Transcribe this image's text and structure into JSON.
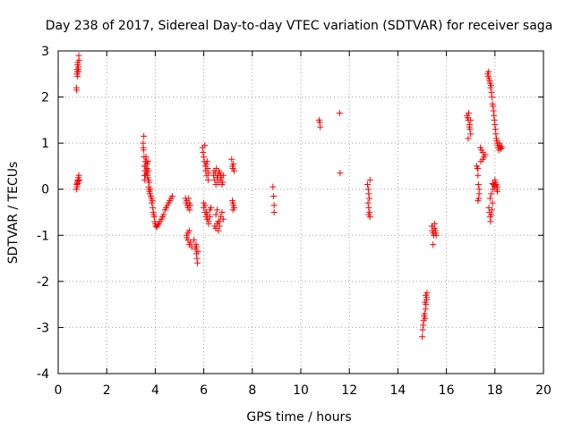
{
  "chart_data": {
    "type": "scatter",
    "title": "Day 238 of 2017, Sidereal Day-to-day VTEC variation (SDTVAR) for receiver saga",
    "xlabel": "GPS time / hours",
    "ylabel": "SDTVAR / TECUs",
    "xlim": [
      0,
      20
    ],
    "ylim": [
      -4,
      3
    ],
    "xticks": [
      0,
      2,
      4,
      6,
      8,
      10,
      12,
      14,
      16,
      18,
      20
    ],
    "yticks": [
      -4,
      -3,
      -2,
      -1,
      0,
      1,
      2,
      3
    ],
    "grid": true,
    "marker": "+",
    "colors": {
      "points": "#ff0000",
      "grid": "#a0a0a0",
      "axes": "#000000"
    },
    "series": [
      {
        "name": "SDTVAR",
        "x": [
          0.75,
          0.76,
          0.77,
          0.78,
          0.79,
          0.8,
          0.81,
          0.82,
          0.83,
          0.84,
          0.85,
          0.86,
          0.8,
          0.75,
          0.77,
          0.79,
          0.81,
          0.83,
          0.85,
          0.87,
          0.78,
          0.8,
          0.82,
          3.5,
          3.51,
          3.52,
          3.53,
          3.54,
          3.55,
          3.56,
          3.57,
          3.58,
          3.59,
          3.6,
          3.61,
          3.62,
          3.63,
          3.64,
          3.65,
          3.66,
          3.67,
          3.68,
          3.69,
          3.7,
          3.71,
          3.72,
          3.73,
          3.74,
          3.75,
          3.76,
          3.78,
          3.8,
          3.82,
          3.84,
          3.86,
          3.88,
          3.9,
          3.92,
          3.94,
          3.96,
          3.98,
          4.0,
          4.03,
          4.06,
          4.1,
          4.15,
          4.2,
          4.25,
          4.3,
          4.35,
          4.4,
          4.45,
          4.5,
          4.55,
          4.6,
          4.65,
          4.7,
          5.25,
          5.28,
          5.3,
          5.32,
          5.35,
          5.38,
          5.4,
          5.42,
          5.45,
          5.3,
          5.35,
          5.4,
          5.3,
          5.35,
          5.4,
          5.45,
          5.5,
          5.6,
          5.65,
          5.7,
          5.72,
          5.74,
          5.76,
          5.68,
          5.7,
          5.95,
          5.97,
          6.0,
          6.02,
          6.04,
          6.06,
          6.08,
          6.1,
          6.12,
          6.14,
          6.16,
          6.18,
          6.2,
          6.0,
          6.05,
          6.1,
          6.15,
          6.2,
          6.25,
          6.0,
          6.05,
          6.1,
          6.15,
          6.2,
          6.25,
          6.3,
          6.4,
          6.42,
          6.45,
          6.48,
          6.5,
          6.52,
          6.55,
          6.58,
          6.6,
          6.62,
          6.65,
          6.68,
          6.7,
          6.72,
          6.75,
          6.78,
          6.8,
          6.45,
          6.5,
          6.55,
          6.6,
          6.65,
          6.7,
          6.75,
          6.8,
          6.5,
          6.55,
          6.6,
          6.65,
          7.15,
          7.18,
          7.2,
          7.22,
          7.25,
          7.2,
          7.22,
          7.25,
          7.18,
          7.2,
          8.85,
          8.88,
          8.9,
          8.9,
          10.75,
          10.78,
          10.8,
          11.6,
          11.62,
          12.75,
          12.78,
          12.8,
          12.82,
          12.85,
          12.8,
          12.83,
          12.85,
          12.77,
          12.8,
          15.0,
          15.02,
          15.04,
          15.06,
          15.08,
          15.1,
          15.12,
          15.14,
          15.16,
          15.18,
          15.2,
          15.12,
          15.15,
          15.18,
          15.4,
          15.42,
          15.45,
          15.48,
          15.5,
          15.52,
          15.55,
          15.58,
          15.45,
          15.5,
          15.55,
          15.42,
          16.85,
          16.87,
          16.9,
          16.92,
          16.95,
          16.97,
          17.0,
          16.9,
          16.95,
          17.0,
          17.25,
          17.28,
          17.3,
          17.32,
          17.35,
          17.3,
          17.33,
          17.4,
          17.45,
          17.5,
          17.55,
          17.6,
          17.42,
          17.5,
          17.35,
          17.3,
          17.7,
          17.72,
          17.74,
          17.76,
          17.78,
          17.8,
          17.82,
          17.84,
          17.86,
          17.88,
          17.9,
          17.92,
          17.94,
          17.96,
          17.98,
          18.0,
          18.02,
          18.04,
          18.06,
          18.08,
          18.1,
          18.12,
          18.14,
          18.16,
          18.18,
          18.2,
          18.22,
          18.25,
          18.28,
          17.75,
          17.78,
          17.8,
          17.82,
          17.85,
          17.88,
          17.9,
          17.92,
          17.95,
          17.98,
          18.0,
          18.02,
          18.05,
          18.08,
          18.1,
          17.8,
          17.85,
          17.9,
          18.0,
          18.1
        ],
        "y": [
          2.2,
          2.15,
          2.5,
          2.6,
          2.55,
          2.7,
          2.75,
          2.6,
          2.65,
          2.55,
          2.9,
          2.8,
          2.45,
          0.0,
          0.1,
          0.15,
          0.2,
          0.25,
          0.3,
          0.2,
          0.05,
          0.12,
          0.18,
          1.0,
          0.9,
          0.85,
          1.15,
          0.7,
          0.5,
          0.3,
          0.2,
          0.4,
          0.6,
          0.3,
          0.5,
          0.7,
          0.4,
          0.6,
          0.35,
          0.45,
          0.55,
          0.3,
          0.25,
          0.6,
          0.4,
          0.2,
          0.05,
          0.0,
          0.15,
          -0.05,
          -0.1,
          0.0,
          -0.15,
          -0.2,
          -0.3,
          -0.25,
          -0.4,
          -0.5,
          -0.55,
          -0.6,
          -0.7,
          -0.75,
          -0.8,
          -0.82,
          -0.78,
          -0.75,
          -0.7,
          -0.65,
          -0.6,
          -0.55,
          -0.45,
          -0.4,
          -0.35,
          -0.3,
          -0.25,
          -0.2,
          -0.15,
          -0.2,
          -0.3,
          -0.25,
          -0.35,
          -0.4,
          -0.2,
          -0.3,
          -0.45,
          -0.35,
          -1.0,
          -1.1,
          -1.2,
          -1.05,
          -0.95,
          -0.9,
          -1.15,
          -1.25,
          -1.1,
          -1.3,
          -1.4,
          -1.5,
          -1.6,
          -1.35,
          -1.2,
          -1.25,
          0.9,
          0.8,
          0.7,
          0.6,
          0.95,
          0.5,
          0.4,
          0.55,
          0.3,
          0.6,
          0.45,
          0.2,
          0.35,
          -0.4,
          -0.5,
          -0.6,
          -0.55,
          -0.7,
          -0.45,
          -0.3,
          -0.35,
          -0.5,
          -0.65,
          -0.75,
          -0.6,
          -0.4,
          0.3,
          0.4,
          0.2,
          0.35,
          0.1,
          0.45,
          0.25,
          0.3,
          0.15,
          0.4,
          0.35,
          0.2,
          0.3,
          0.25,
          0.1,
          0.15,
          0.3,
          -0.8,
          -0.85,
          -0.75,
          -0.9,
          -0.7,
          -0.6,
          -0.5,
          -0.65,
          -0.55,
          -0.45,
          -0.7,
          -0.8,
          0.65,
          0.5,
          0.45,
          0.55,
          0.4,
          -0.3,
          -0.35,
          -0.4,
          -0.25,
          -0.45,
          0.05,
          -0.15,
          -0.35,
          -0.5,
          1.5,
          1.45,
          1.35,
          1.65,
          0.35,
          0.1,
          0.0,
          -0.1,
          -0.2,
          0.2,
          -0.4,
          -0.5,
          -0.6,
          -0.3,
          -0.55,
          -3.2,
          -3.05,
          -2.95,
          -2.85,
          -2.75,
          -2.7,
          -2.8,
          -2.6,
          -2.5,
          -2.35,
          -2.25,
          -2.45,
          -2.3,
          -2.4,
          -0.8,
          -0.9,
          -0.95,
          -1.0,
          -0.85,
          -0.75,
          -0.9,
          -1.0,
          -1.2,
          -0.85,
          -0.95,
          -0.8,
          1.6,
          1.55,
          1.5,
          1.65,
          1.4,
          1.3,
          1.2,
          1.1,
          1.35,
          1.5,
          0.5,
          0.45,
          0.3,
          0.1,
          -0.1,
          -0.25,
          -0.2,
          0.9,
          0.85,
          0.8,
          0.7,
          0.75,
          0.6,
          0.65,
          0.0,
          0.45,
          2.5,
          2.45,
          2.55,
          2.4,
          2.35,
          2.3,
          2.2,
          2.25,
          2.1,
          2.0,
          1.85,
          1.8,
          1.7,
          1.6,
          1.5,
          1.4,
          1.3,
          1.2,
          1.1,
          1.05,
          1.0,
          0.95,
          0.9,
          0.85,
          1.0,
          0.95,
          0.9,
          0.88,
          0.92,
          -0.4,
          -0.5,
          -0.6,
          -0.7,
          -0.55,
          -0.45,
          -0.3,
          0.0,
          0.1,
          0.05,
          0.2,
          0.15,
          0.1,
          0.0,
          0.05,
          -0.2,
          -0.1,
          0.12,
          0.08,
          -0.05
        ]
      }
    ]
  }
}
